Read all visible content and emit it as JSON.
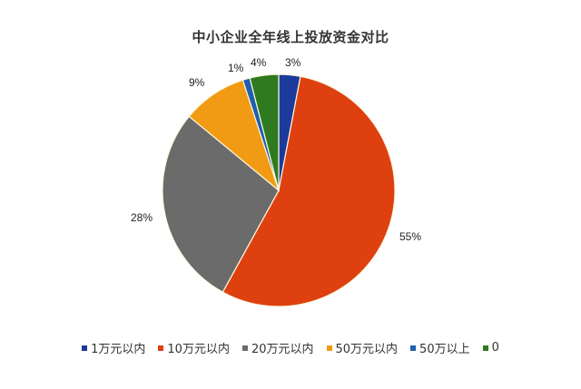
{
  "chart_data": {
    "type": "pie",
    "title": "中小企业全年线上投放资金对比",
    "categories": [
      "1万元以内",
      "10万元以内",
      "20万元以内",
      "50万元以内",
      "50万以上",
      "0"
    ],
    "values": [
      3,
      55,
      28,
      9,
      1,
      4
    ],
    "value_labels": [
      "3%",
      "55%",
      "28%",
      "9%",
      "1%",
      "4%"
    ],
    "colors": [
      "#1c3a9c",
      "#de4010",
      "#6b6b6b",
      "#f19a13",
      "#1f5fae",
      "#2f7a1e"
    ],
    "start_angle_deg": 0,
    "direction": "clockwise",
    "legend_position": "bottom",
    "xlabel": "",
    "ylabel": ""
  },
  "title": "中小企业全年线上投放资金对比",
  "labels": {
    "l0": "3%",
    "l1": "55%",
    "l2": "28%",
    "l3": "9%",
    "l4": "1%",
    "l5": "4%"
  },
  "legend": [
    {
      "label": "1万元以内",
      "color": "#1c3a9c"
    },
    {
      "label": "10万元以内",
      "color": "#de4010"
    },
    {
      "label": "20万元以内",
      "color": "#6b6b6b"
    },
    {
      "label": "50万元以内",
      "color": "#f19a13"
    },
    {
      "label": "50万以上",
      "color": "#1f5fae"
    },
    {
      "label": "0",
      "color": "#2f7a1e"
    }
  ]
}
